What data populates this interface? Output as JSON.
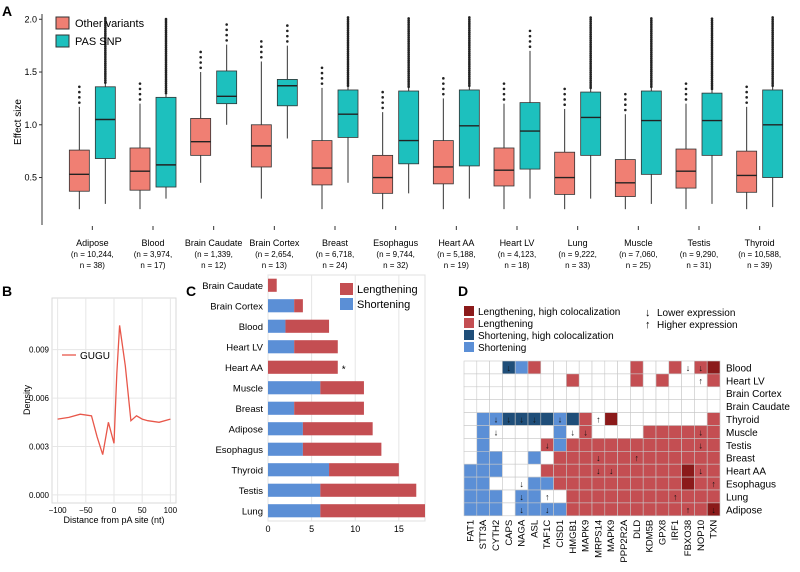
{
  "panel_labels": {
    "a": "A",
    "b": "B",
    "c": "C",
    "d": "D"
  },
  "colors": {
    "other": "#f07f73",
    "pas": "#1dc0be",
    "lengthening": "#c44e52",
    "shortening": "#5b8fd6",
    "high_len": "#8b1a1a",
    "high_short": "#1f4e79",
    "grid": "#e6e6e6",
    "line_b": "#e8574a"
  },
  "chart_data": [
    {
      "id": "A",
      "type": "box",
      "ylabel": "Effect size",
      "ylim": [
        0.05,
        2.05
      ],
      "yticks": [
        0.5,
        1.0,
        1.5,
        2.0
      ],
      "ytick_labels": [
        "0.5",
        "1.0",
        "1.5",
        "2.0"
      ],
      "legend": [
        "Other variants",
        "PAS SNP"
      ],
      "groups": [
        {
          "tissue": "Adipose",
          "n1": "(n = 10,244,",
          "n2": "n = 38)",
          "other": [
            0.2,
            0.37,
            0.53,
            0.76,
            1.17
          ],
          "pas": [
            0.25,
            0.68,
            1.05,
            1.36,
            2.0
          ]
        },
        {
          "tissue": "Blood",
          "n1": "(n = 3,974,",
          "n2": "n = 17)",
          "other": [
            0.2,
            0.38,
            0.56,
            0.78,
            1.2
          ],
          "pas": [
            0.3,
            0.41,
            0.62,
            1.26,
            2.0
          ]
        },
        {
          "tissue": "Brain Caudate",
          "n1": "(n = 1,339,",
          "n2": "n = 12)",
          "other": [
            0.45,
            0.71,
            0.84,
            1.06,
            1.5
          ],
          "pas": [
            1.0,
            1.2,
            1.27,
            1.51,
            1.76
          ]
        },
        {
          "tissue": "Brain Cortex",
          "n1": "(n = 2,654,",
          "n2": "n = 13)",
          "other": [
            0.3,
            0.6,
            0.8,
            1.0,
            1.6
          ],
          "pas": [
            0.87,
            1.18,
            1.37,
            1.43,
            1.75
          ]
        },
        {
          "tissue": "Breast",
          "n1": "(n = 6,718,",
          "n2": "n = 24)",
          "other": [
            0.2,
            0.43,
            0.59,
            0.85,
            1.35
          ],
          "pas": [
            0.45,
            0.88,
            1.1,
            1.33,
            2.0
          ]
        },
        {
          "tissue": "Esophagus",
          "n1": "(n = 9,744,",
          "n2": "n = 32)",
          "other": [
            0.2,
            0.35,
            0.5,
            0.71,
            1.12
          ],
          "pas": [
            0.35,
            0.63,
            0.85,
            1.32,
            2.0
          ]
        },
        {
          "tissue": "Heart AA",
          "n1": "(n = 5,188,",
          "n2": "n = 19)",
          "other": [
            0.2,
            0.44,
            0.6,
            0.85,
            1.25
          ],
          "pas": [
            0.3,
            0.61,
            0.99,
            1.33,
            2.0
          ]
        },
        {
          "tissue": "Heart LV",
          "n1": "(n = 4,123,",
          "n2": "n = 18)",
          "other": [
            0.2,
            0.42,
            0.57,
            0.78,
            1.2
          ],
          "pas": [
            0.3,
            0.58,
            0.94,
            1.21,
            1.7
          ]
        },
        {
          "tissue": "Lung",
          "n1": "(n = 9,222,",
          "n2": "n = 33)",
          "other": [
            0.2,
            0.34,
            0.5,
            0.74,
            1.15
          ],
          "pas": [
            0.3,
            0.71,
            1.07,
            1.31,
            2.0
          ]
        },
        {
          "tissue": "Muscle",
          "n1": "(n = 7,060,",
          "n2": "n = 25)",
          "other": [
            0.2,
            0.32,
            0.45,
            0.67,
            1.1
          ],
          "pas": [
            0.25,
            0.53,
            1.04,
            1.32,
            2.0
          ]
        },
        {
          "tissue": "Testis",
          "n1": "(n = 9,290,",
          "n2": "n = 31)",
          "other": [
            0.2,
            0.4,
            0.56,
            0.77,
            1.2
          ],
          "pas": [
            0.25,
            0.71,
            1.04,
            1.3,
            2.0
          ]
        },
        {
          "tissue": "Thyroid",
          "n1": "(n = 10,588,",
          "n2": "n = 39)",
          "other": [
            0.2,
            0.36,
            0.52,
            0.75,
            1.17
          ],
          "pas": [
            0.22,
            0.5,
            1.0,
            1.33,
            2.0
          ]
        }
      ]
    },
    {
      "id": "B",
      "type": "line",
      "xlabel": "Distance from pA site (nt)",
      "ylabel": "Density",
      "legend": "GUGU",
      "xlim": [
        -110,
        110
      ],
      "ylim": [
        -0.0005,
        0.0122
      ],
      "xticks": [
        -100,
        -50,
        0,
        50,
        100
      ],
      "xtick_labels": [
        "−100",
        "−50",
        "0",
        "50",
        "100"
      ],
      "yticks": [
        0.0,
        0.003,
        0.006,
        0.009
      ],
      "ytick_labels": [
        "0.000",
        "0.003",
        "0.006",
        "0.009"
      ],
      "x": [
        -100,
        -80,
        -60,
        -40,
        -30,
        -20,
        -10,
        0,
        5,
        10,
        20,
        30,
        40,
        50,
        60,
        80,
        100
      ],
      "y": [
        0.0047,
        0.0048,
        0.005,
        0.0049,
        0.0036,
        0.0025,
        0.0045,
        0.0032,
        0.0075,
        0.0105,
        0.008,
        0.0046,
        0.0049,
        0.0047,
        0.0046,
        0.0045,
        0.0047
      ]
    },
    {
      "id": "C",
      "type": "bar",
      "legend": [
        "Lengthening",
        "Shortening"
      ],
      "xlim": [
        0,
        18
      ],
      "xticks": [
        0,
        5,
        10,
        15
      ],
      "xtick_labels": [
        "0",
        "5",
        "10",
        "15"
      ],
      "star_label": "*",
      "star_category": "Heart AA",
      "categories": [
        "Brain Caudate",
        "Brain Cortex",
        "Blood",
        "Heart LV",
        "Heart AA",
        "Muscle",
        "Breast",
        "Adipose",
        "Esophagus",
        "Thyroid",
        "Testis",
        "Lung"
      ],
      "series": [
        {
          "name": "Shortening",
          "values": [
            0,
            3,
            2,
            3,
            0,
            6,
            3,
            4,
            4,
            7,
            6,
            6
          ]
        },
        {
          "name": "Lengthening",
          "values": [
            1,
            1,
            5,
            5,
            8,
            5,
            8,
            8,
            9,
            8,
            11,
            12
          ]
        }
      ]
    },
    {
      "id": "D",
      "type": "heatmap",
      "legend": [
        {
          "key": "L",
          "label": "Lengthening, high colocalization"
        },
        {
          "key": "l",
          "label": "Lengthening"
        },
        {
          "key": "S",
          "label": "Shortening, high colocalization"
        },
        {
          "key": "s",
          "label": "Shortening"
        }
      ],
      "arrow_legend": [
        {
          "symbol": "↓",
          "label": "Lower expression"
        },
        {
          "symbol": "↑",
          "label": "Higher expression"
        }
      ],
      "rows": [
        "Blood",
        "Heart LV",
        "Brain Cortex",
        "Brain Caudate",
        "Thyroid",
        "Muscle",
        "Testis",
        "Breast",
        "Heart AA",
        "Esophagus",
        "Lung",
        "Adipose"
      ],
      "cols": [
        "FAT1",
        "STT3A",
        "CYTH2",
        "CAPS",
        "NAGA",
        "ASL",
        "TAF1C",
        "CISD1",
        "HMGB1",
        "MAPK9",
        "MRPS14",
        "MAPK9",
        "PPP2R2A",
        "DLD",
        "KDM5B",
        "GPX8",
        "IRF1",
        "FBXO38",
        "NOP10",
        "TXN"
      ],
      "cells": [
        "...Ssl.......l..l.lL",
        "........l....l.l...l",
        "....................",
        "....................",
        ".ssSSSSsSl.L.......l",
        ".s.....s.l....llllll",
        ".s....lsllllllllllll",
        ".ss..s.lllllllllllll",
        "sss...lllllllllllLll",
        "ss...ssllllllllllLll",
        "sss.ss..llllllllllll",
        "sss.sssslllllllllllL"
      ],
      "arrows": [
        "...d.............dd.",
        "..................u.",
        "....................",
        "....................",
        "..dddd.d..u.........",
        "..d.....dd........d.",
        "......d...........d.",
        "..........d..u......",
        "..........dd......d.",
        "....d..............u",
        "....d.u.........u...",
        "....d.d..........u.d"
      ]
    }
  ]
}
